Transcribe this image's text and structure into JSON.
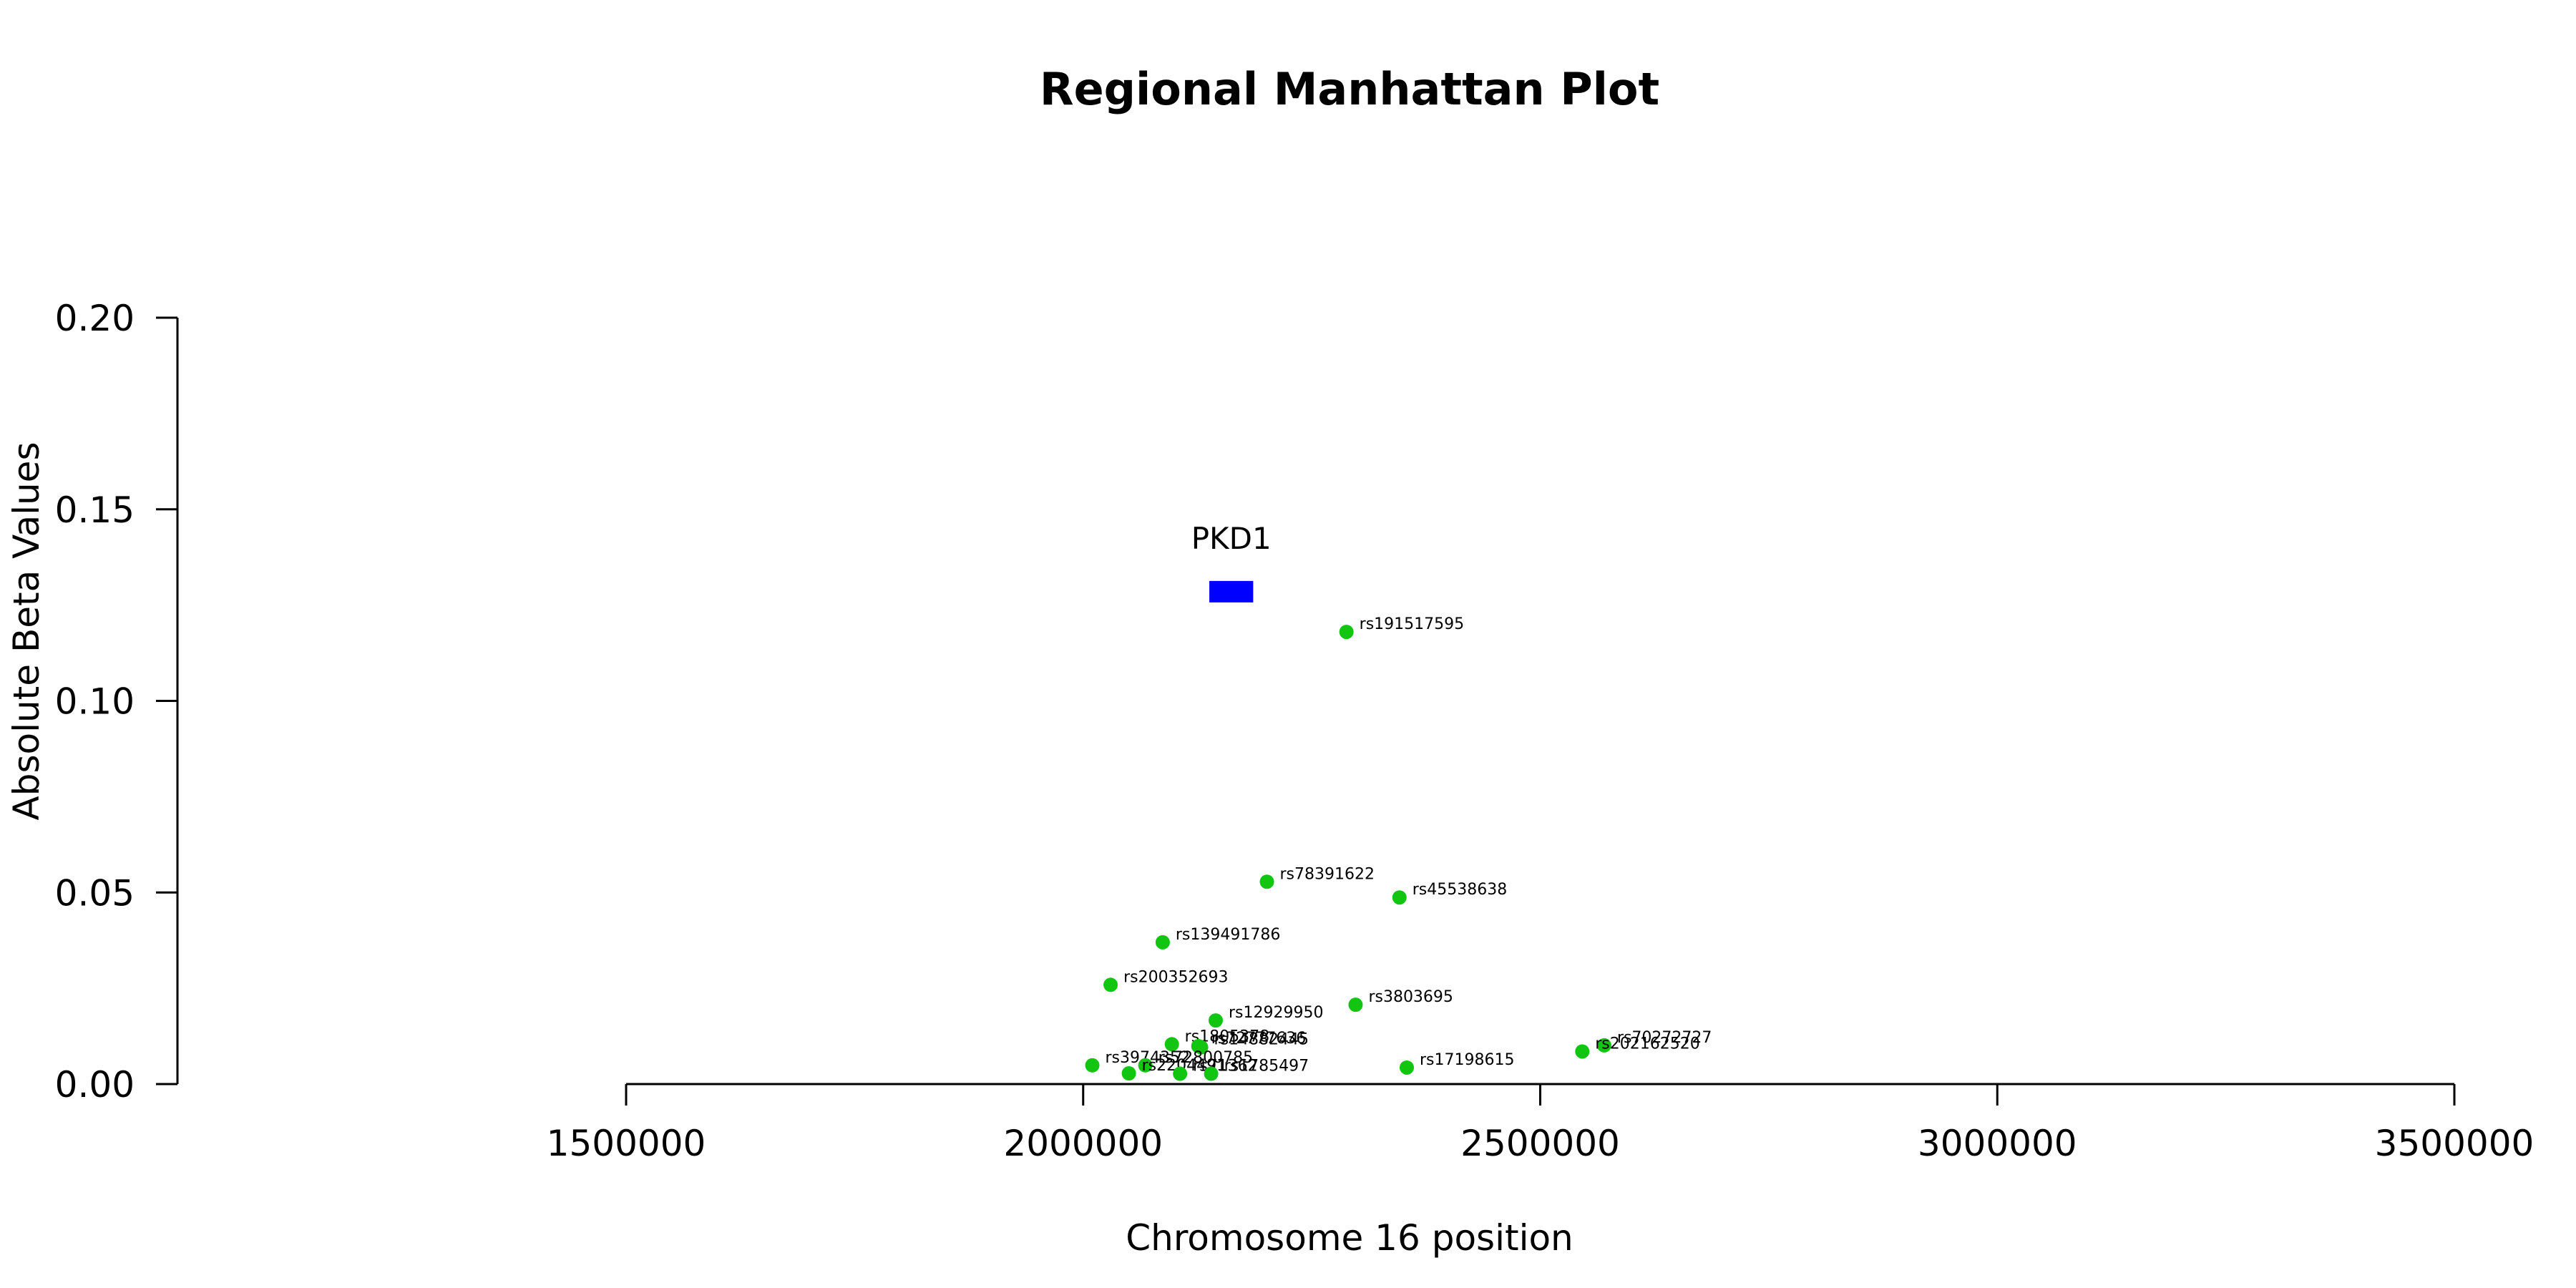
{
  "chart_data": {
    "type": "scatter",
    "title": "Regional Manhattan Plot",
    "xlabel": "Chromosome 16 position",
    "ylabel": "Absolute Beta Values",
    "xlim": [
      1500000,
      3500000
    ],
    "ylim": [
      0,
      0.2
    ],
    "x_ticks": [
      1500000,
      2000000,
      2500000,
      3000000,
      3500000
    ],
    "x_tick_labels": [
      "1500000",
      "2000000",
      "2500000",
      "3000000",
      "3500000"
    ],
    "y_ticks": [
      0,
      0.05,
      0.1,
      0.15,
      0.2
    ],
    "y_tick_labels": [
      "0.00",
      "0.05",
      "0.10",
      "0.15",
      "0.20"
    ],
    "grid": false,
    "point_color": "#11c511",
    "gene_color": "#0000ff",
    "genes": [
      {
        "name": "PKD1",
        "start": 2138000,
        "end": 2186000,
        "y": 0.1285
      }
    ],
    "points": [
      {
        "label": "rs191517595",
        "x": 2288000,
        "y": 0.118
      },
      {
        "label": "rs78391622",
        "x": 2201000,
        "y": 0.0528
      },
      {
        "label": "rs45538638",
        "x": 2346000,
        "y": 0.0487
      },
      {
        "label": "rs139491786",
        "x": 2087000,
        "y": 0.037
      },
      {
        "label": "rs200352693",
        "x": 2030000,
        "y": 0.0259
      },
      {
        "label": "rs3803695",
        "x": 2298000,
        "y": 0.0207
      },
      {
        "label": "rs12929950",
        "x": 2145000,
        "y": 0.0166
      },
      {
        "label": "rs1805378",
        "x": 2097000,
        "y": 0.0104
      },
      {
        "label": "rs72777636",
        "x": 2126000,
        "y": 0.0099
      },
      {
        "label": "rs14882445",
        "x": 2129000,
        "y": 0.0096
      },
      {
        "label": "rs70272727",
        "x": 2570000,
        "y": 0.0101
      },
      {
        "label": "rs202162520",
        "x": 2546000,
        "y": 0.0085
      },
      {
        "label": "rs3974352",
        "x": 2010000,
        "y": 0.0049
      },
      {
        "label": "rs72800785",
        "x": 2068000,
        "y": 0.0049
      },
      {
        "label": "rs17198615",
        "x": 2354000,
        "y": 0.0043
      },
      {
        "label": "rs2204491",
        "x": 2050000,
        "y": 0.0028
      },
      {
        "label": "rs71362",
        "x": 2106000,
        "y": 0.0027
      },
      {
        "label": "rs1785497",
        "x": 2140000,
        "y": 0.0027
      }
    ]
  }
}
